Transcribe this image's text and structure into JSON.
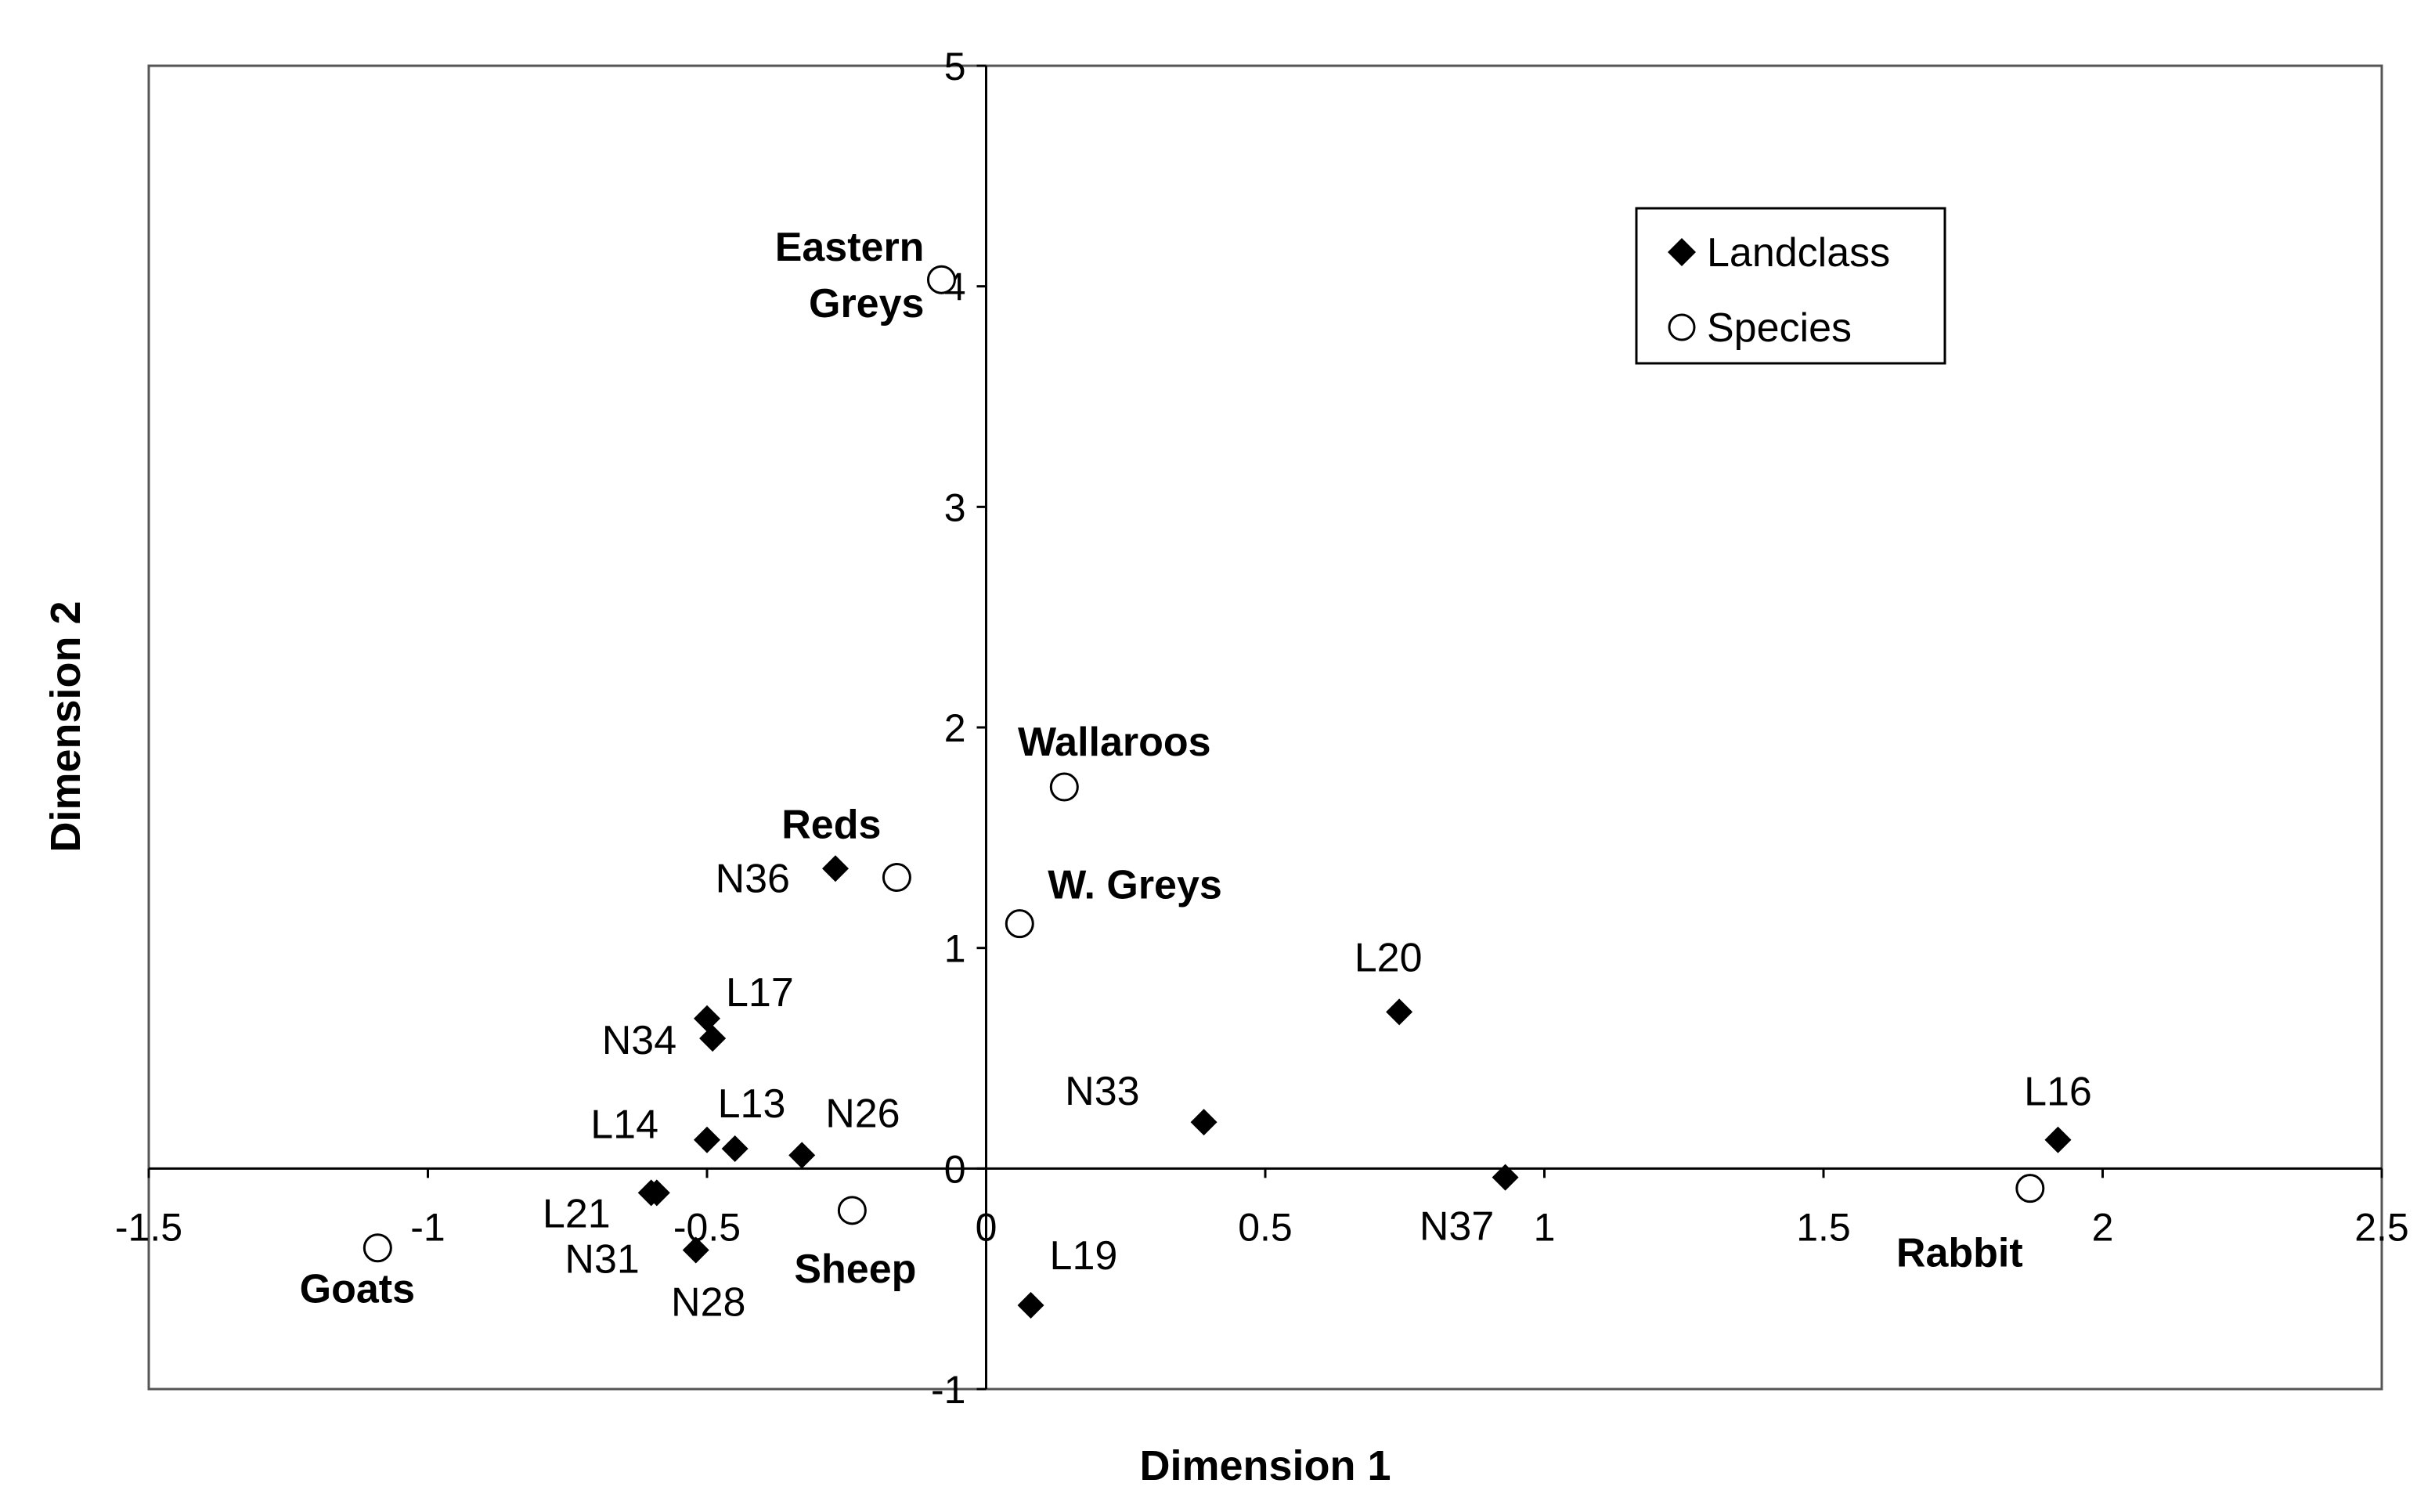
{
  "chart_data": {
    "type": "scatter",
    "title": "",
    "xlabel": "Dimension  1",
    "ylabel": "Dimension  2",
    "xlim": [
      -1.5,
      2.5
    ],
    "ylim": [
      -1,
      5
    ],
    "x_ticks": [
      -1.5,
      -1,
      -0.5,
      0,
      0.5,
      1,
      1.5,
      2,
      2.5
    ],
    "x_tick_labels": [
      "-1.5",
      "-1",
      "-0.5",
      "0",
      "0.5",
      "1",
      "1.5",
      "2",
      "2.5"
    ],
    "y_ticks": [
      -1,
      0,
      1,
      2,
      3,
      4,
      5
    ],
    "y_tick_labels": [
      "-1",
      "0",
      "1",
      "2",
      "3",
      "4",
      "5"
    ],
    "grid": false,
    "legend_position": "top-right",
    "series": [
      {
        "name": "Landclass",
        "marker": "diamond",
        "color": "#000000",
        "points": [
          {
            "label": "N36",
            "x": -0.27,
            "y": 1.36
          },
          {
            "label": "L17",
            "x": -0.5,
            "y": 0.68
          },
          {
            "label": "N34",
            "x": -0.49,
            "y": 0.59
          },
          {
            "label": "L14",
            "x": -0.5,
            "y": 0.13
          },
          {
            "label": "L13",
            "x": -0.45,
            "y": 0.09
          },
          {
            "label": "N26",
            "x": -0.33,
            "y": 0.06
          },
          {
            "label": "L21",
            "x": -0.6,
            "y": -0.11
          },
          {
            "label": "N31",
            "x": -0.59,
            "y": -0.11
          },
          {
            "label": "N28",
            "x": -0.52,
            "y": -0.37
          },
          {
            "label": "L19",
            "x": 0.08,
            "y": -0.62
          },
          {
            "label": "L20",
            "x": 0.74,
            "y": 0.71
          },
          {
            "label": "N33",
            "x": 0.39,
            "y": 0.21
          },
          {
            "label": "N37",
            "x": 0.93,
            "y": -0.04
          },
          {
            "label": "L16",
            "x": 1.92,
            "y": 0.13
          }
        ]
      },
      {
        "name": "Species",
        "marker": "open-circle",
        "color": "#000000",
        "points": [
          {
            "label": "Eastern Greys",
            "x": -0.08,
            "y": 4.03
          },
          {
            "label": "Wallaroos",
            "x": 0.14,
            "y": 1.73
          },
          {
            "label": "Reds",
            "x": -0.16,
            "y": 1.32
          },
          {
            "label": "W. Greys",
            "x": 0.06,
            "y": 1.11
          },
          {
            "label": "Goats",
            "x": -1.09,
            "y": -0.36
          },
          {
            "label": "Sheep",
            "x": -0.24,
            "y": -0.19
          },
          {
            "label": "Rabbit",
            "x": 1.87,
            "y": -0.09
          }
        ]
      }
    ]
  }
}
